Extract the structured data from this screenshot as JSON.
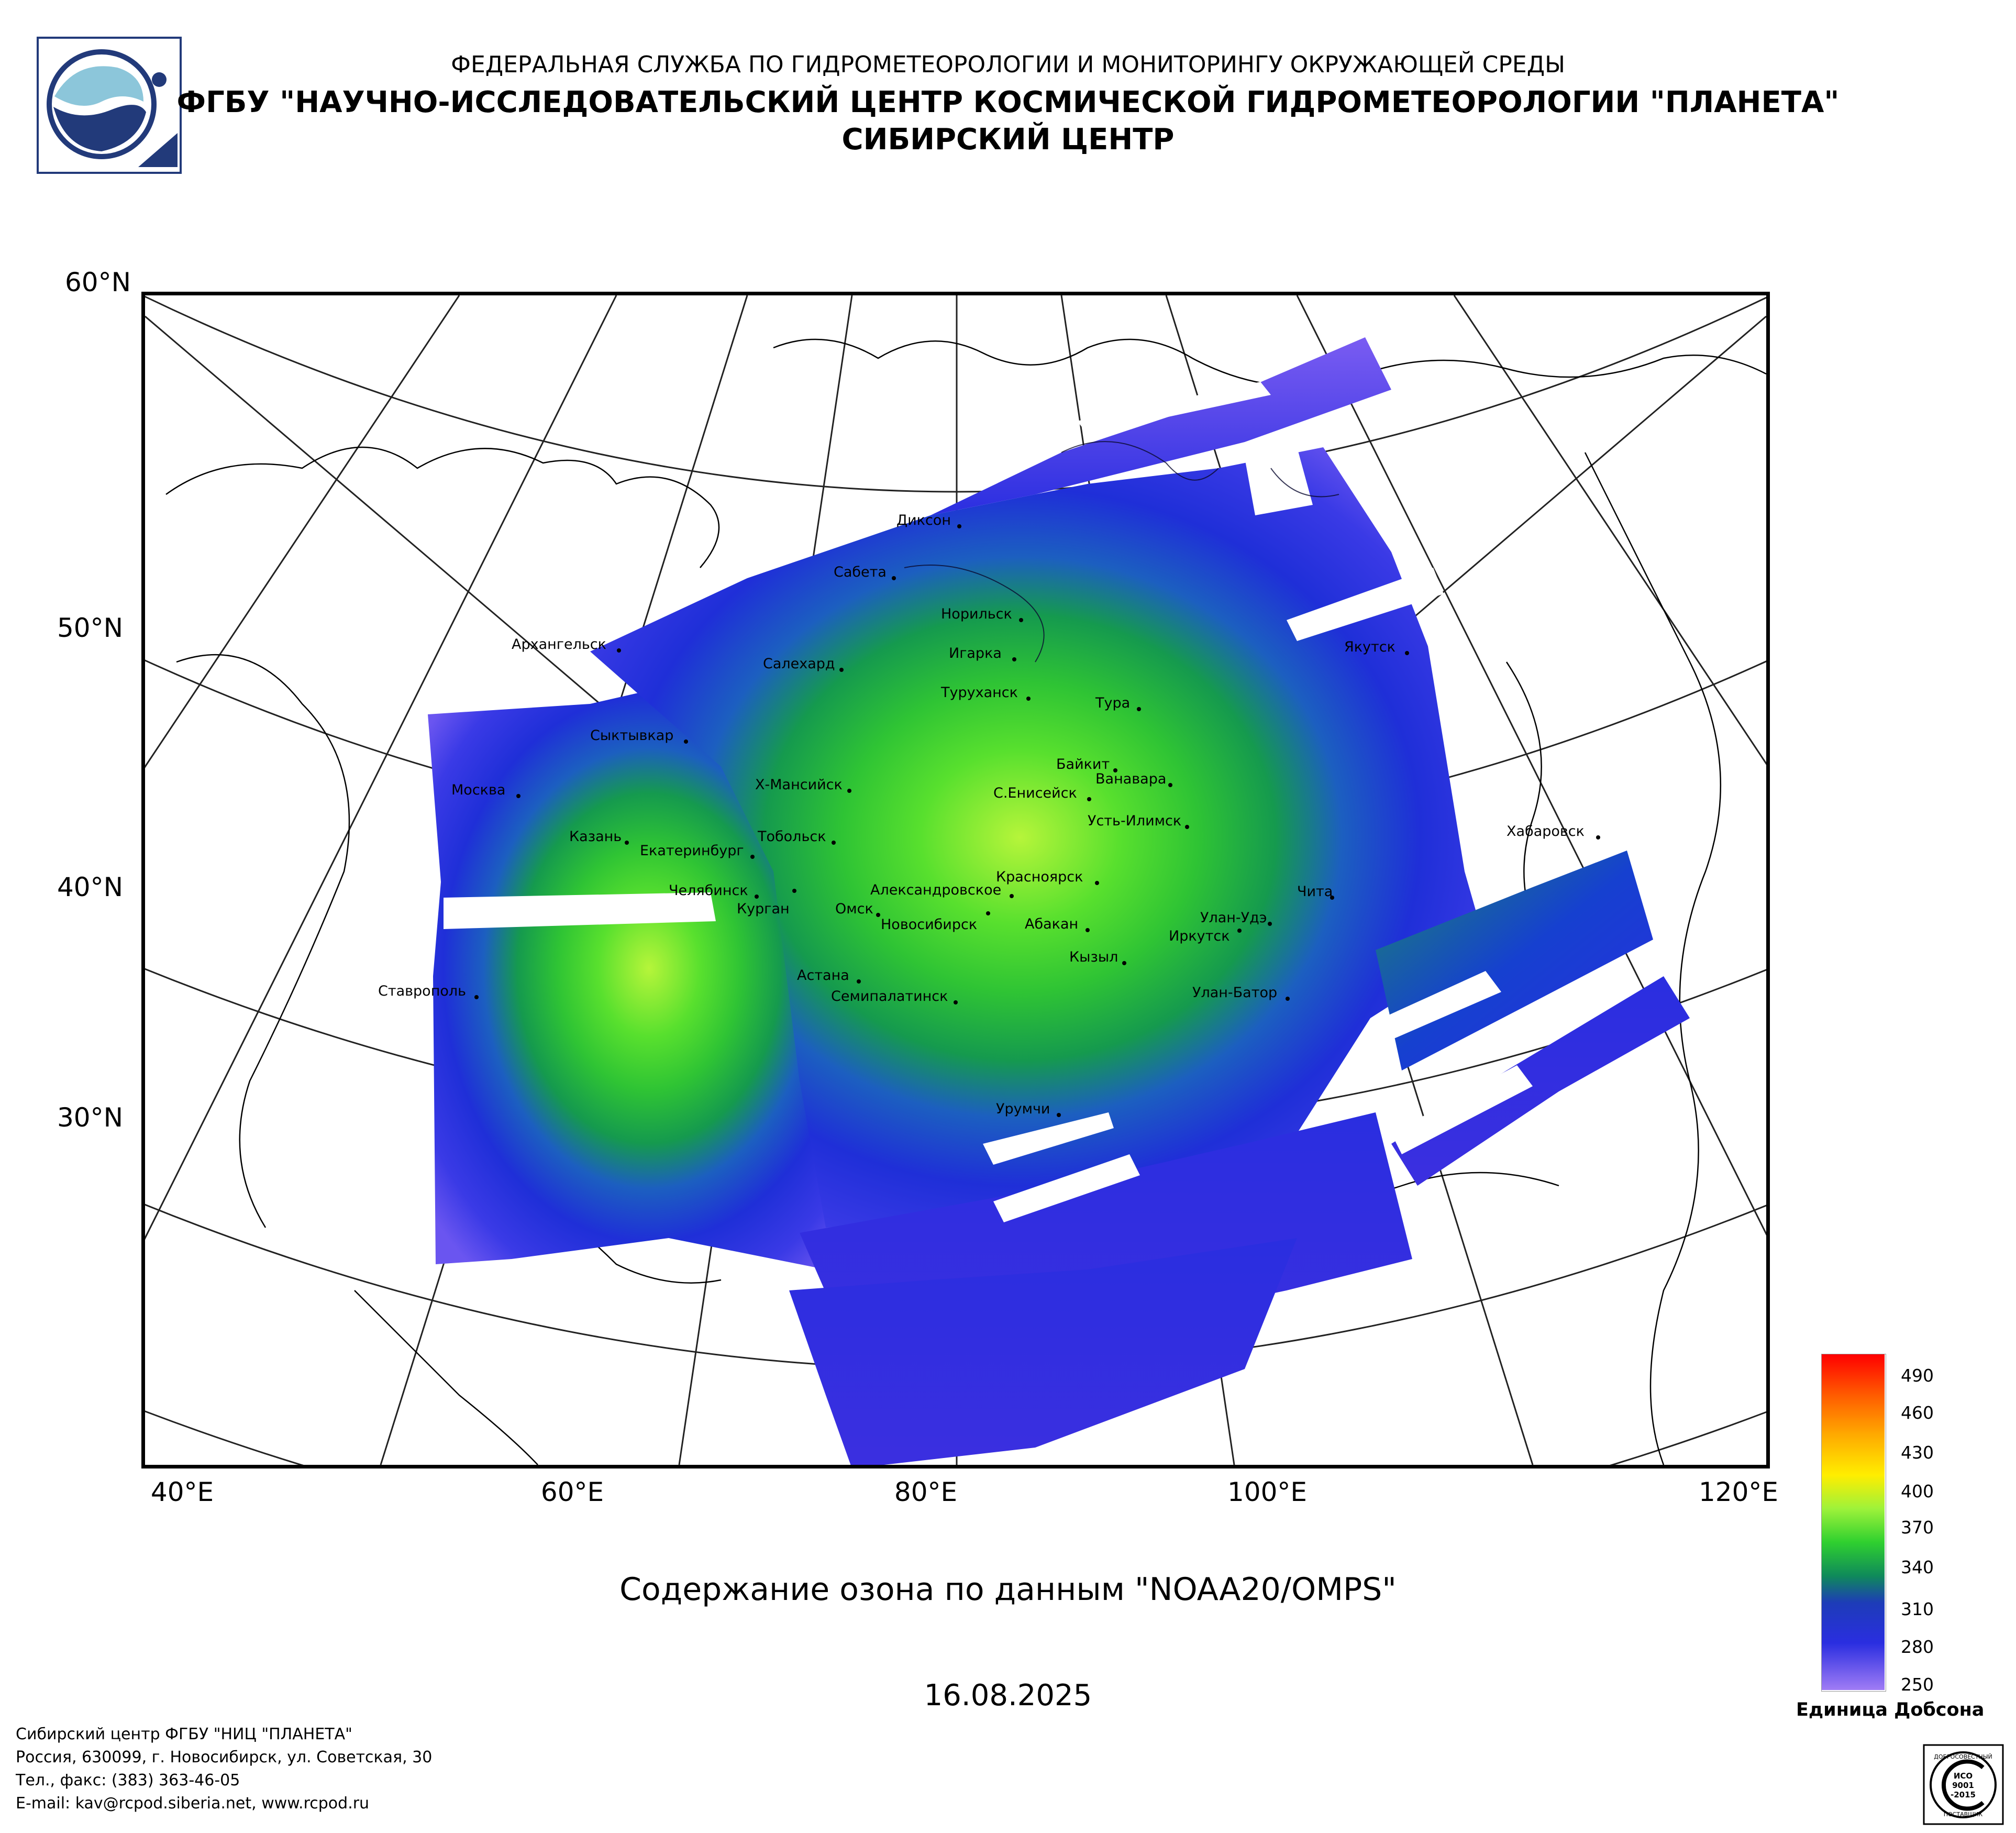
{
  "header": {
    "line1": "ФЕДЕРАЛЬНАЯ СЛУЖБА ПО ГИДРОМЕТЕОРОЛОГИИ И МОНИТОРИНГУ ОКРУЖАЮЩЕЙ СРЕДЫ",
    "line2": "ФГБУ \"НАУЧНО-ИССЛЕДОВАТЕЛЬСКИЙ ЦЕНТР КОСМИЧЕСКОЙ ГИДРОМЕТЕОРОЛОГИИ \"ПЛАНЕТА\"",
    "line3": "СИБИРСКИЙ ЦЕНТР"
  },
  "map": {
    "lat_labels": [
      "60°N",
      "50°N",
      "40°N",
      "30°N"
    ],
    "lon_labels": [
      "40°E",
      "60°E",
      "80°E",
      "100°E",
      "120°E"
    ],
    "cities": [
      {
        "name": "Диксон"
      },
      {
        "name": "Сабета"
      },
      {
        "name": "Норильск"
      },
      {
        "name": "Архангельск"
      },
      {
        "name": "Салехард"
      },
      {
        "name": "Игарка"
      },
      {
        "name": "Туруханск"
      },
      {
        "name": "Тура"
      },
      {
        "name": "Якутск"
      },
      {
        "name": "Сыктывкар"
      },
      {
        "name": "Байкит"
      },
      {
        "name": "Ванавара"
      },
      {
        "name": "Москва"
      },
      {
        "name": "Х-Мансийск"
      },
      {
        "name": "С.Енисейск"
      },
      {
        "name": "Усть-Илимск"
      },
      {
        "name": "Хабаровск"
      },
      {
        "name": "Казань"
      },
      {
        "name": "Тобольск"
      },
      {
        "name": "Екатеринбург"
      },
      {
        "name": "Красноярск"
      },
      {
        "name": "Челябинск"
      },
      {
        "name": "Курган"
      },
      {
        "name": "Александровское"
      },
      {
        "name": "Чита"
      },
      {
        "name": "Омск"
      },
      {
        "name": "Новосибирск"
      },
      {
        "name": "Абакан"
      },
      {
        "name": "Улан-Удэ"
      },
      {
        "name": "Иркутск"
      },
      {
        "name": "Кызыл"
      },
      {
        "name": "Астана"
      },
      {
        "name": "Ставрополь"
      },
      {
        "name": "Семипалатинск"
      },
      {
        "name": "Улан-Батор"
      },
      {
        "name": "Урумчи"
      }
    ]
  },
  "title": "Содержание озона по данным \"NOAA20/OMPS\"",
  "date": "16.08.2025",
  "legend": {
    "labels": [
      "490",
      "460",
      "430",
      "400",
      "370",
      "340",
      "310",
      "280",
      "250"
    ],
    "unit": "Единица Добсона"
  },
  "footer": {
    "line1": "Сибирский центр ФГБУ \"НИЦ \"ПЛАНЕТА\"",
    "line2": "Россия, 630099, г. Новосибирск, ул. Советская, 30",
    "line3": "Тел., факс: (383) 363-46-05",
    "line4": "E-mail: kav@rcpod.siberia.net, www.rcpod.ru"
  },
  "stamp": {
    "text1": "ДОБРОСОВЕСТНЫЙ",
    "text2": "ИСО",
    "text3": "9001",
    "text4": "-2015",
    "text5": "ПОСТАВЩИК"
  },
  "colors": {
    "low": "#8a5cf0",
    "blue": "#1f2fd8",
    "teal": "#0f8a5a",
    "green": "#2fd02f",
    "lime": "#9ef23a",
    "high": "#ff1a00"
  }
}
